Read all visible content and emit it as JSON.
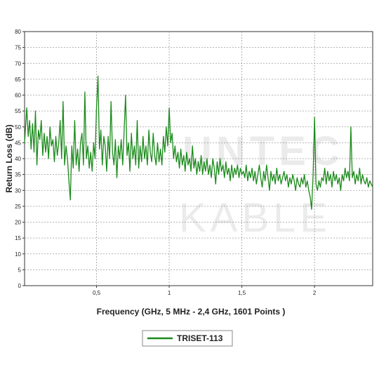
{
  "chart_data": {
    "type": "line",
    "xlabel": "Frequency (GHz, 5 MHz - 2,4 GHz, 1601 Points )",
    "ylabel": "Return Loss (dB)",
    "xlim": [
      0.005,
      2.4
    ],
    "ylim": [
      0,
      80
    ],
    "x_ticks": [
      {
        "value": 0.5,
        "label": "0,5"
      },
      {
        "value": 1,
        "label": "1"
      },
      {
        "value": 1.5,
        "label": "1,5"
      },
      {
        "value": 2,
        "label": "2"
      }
    ],
    "y_ticks": [
      0,
      5,
      10,
      15,
      20,
      25,
      30,
      35,
      40,
      45,
      50,
      55,
      60,
      65,
      70,
      75,
      80
    ],
    "grid": true,
    "legend_position": "bottom-center",
    "series": [
      {
        "name": "TRISET-113",
        "color": "#1a8a1a",
        "points": [
          [
            0.005,
            45
          ],
          [
            0.02,
            56
          ],
          [
            0.03,
            47
          ],
          [
            0.04,
            52
          ],
          [
            0.05,
            43
          ],
          [
            0.06,
            51
          ],
          [
            0.07,
            42
          ],
          [
            0.08,
            55
          ],
          [
            0.09,
            38
          ],
          [
            0.1,
            49
          ],
          [
            0.11,
            46
          ],
          [
            0.12,
            52
          ],
          [
            0.13,
            41
          ],
          [
            0.14,
            48
          ],
          [
            0.15,
            42
          ],
          [
            0.16,
            47
          ],
          [
            0.17,
            40
          ],
          [
            0.18,
            50
          ],
          [
            0.19,
            44
          ],
          [
            0.2,
            46
          ],
          [
            0.21,
            39
          ],
          [
            0.22,
            47
          ],
          [
            0.23,
            41
          ],
          [
            0.24,
            45
          ],
          [
            0.25,
            52
          ],
          [
            0.26,
            40
          ],
          [
            0.27,
            58
          ],
          [
            0.28,
            38
          ],
          [
            0.29,
            44
          ],
          [
            0.3,
            40
          ],
          [
            0.31,
            33
          ],
          [
            0.32,
            27
          ],
          [
            0.33,
            44
          ],
          [
            0.34,
            37
          ],
          [
            0.35,
            52
          ],
          [
            0.36,
            38
          ],
          [
            0.37,
            43
          ],
          [
            0.38,
            36
          ],
          [
            0.39,
            45
          ],
          [
            0.4,
            48
          ],
          [
            0.41,
            38
          ],
          [
            0.42,
            61
          ],
          [
            0.43,
            40
          ],
          [
            0.44,
            44
          ],
          [
            0.45,
            37
          ],
          [
            0.46,
            42
          ],
          [
            0.47,
            36
          ],
          [
            0.48,
            45
          ],
          [
            0.49,
            40
          ],
          [
            0.5,
            56
          ],
          [
            0.51,
            66
          ],
          [
            0.52,
            43
          ],
          [
            0.53,
            49
          ],
          [
            0.54,
            38
          ],
          [
            0.55,
            47
          ],
          [
            0.56,
            44
          ],
          [
            0.57,
            36
          ],
          [
            0.58,
            47
          ],
          [
            0.59,
            40
          ],
          [
            0.6,
            58
          ],
          [
            0.61,
            42
          ],
          [
            0.62,
            38
          ],
          [
            0.63,
            46
          ],
          [
            0.64,
            34
          ],
          [
            0.65,
            44
          ],
          [
            0.66,
            40
          ],
          [
            0.67,
            46
          ],
          [
            0.68,
            38
          ],
          [
            0.69,
            49
          ],
          [
            0.7,
            60
          ],
          [
            0.71,
            41
          ],
          [
            0.72,
            45
          ],
          [
            0.73,
            36
          ],
          [
            0.74,
            48
          ],
          [
            0.75,
            40
          ],
          [
            0.76,
            44
          ],
          [
            0.77,
            38
          ],
          [
            0.78,
            52
          ],
          [
            0.79,
            37
          ],
          [
            0.8,
            44
          ],
          [
            0.81,
            39
          ],
          [
            0.82,
            47
          ],
          [
            0.83,
            40
          ],
          [
            0.84,
            44
          ],
          [
            0.85,
            38
          ],
          [
            0.86,
            49
          ],
          [
            0.87,
            42
          ],
          [
            0.88,
            39
          ],
          [
            0.89,
            48
          ],
          [
            0.9,
            41
          ],
          [
            0.91,
            38
          ],
          [
            0.92,
            45
          ],
          [
            0.93,
            39
          ],
          [
            0.94,
            43
          ],
          [
            0.95,
            38
          ],
          [
            0.96,
            47
          ],
          [
            0.97,
            42
          ],
          [
            0.98,
            50
          ],
          [
            0.99,
            44
          ],
          [
            1.0,
            56
          ],
          [
            1.01,
            45
          ],
          [
            1.02,
            48
          ],
          [
            1.03,
            40
          ],
          [
            1.04,
            44
          ],
          [
            1.05,
            39
          ],
          [
            1.06,
            42
          ],
          [
            1.07,
            37
          ],
          [
            1.08,
            43
          ],
          [
            1.09,
            38
          ],
          [
            1.1,
            41
          ],
          [
            1.11,
            36
          ],
          [
            1.12,
            42
          ],
          [
            1.13,
            38
          ],
          [
            1.14,
            40
          ],
          [
            1.15,
            36
          ],
          [
            1.16,
            44
          ],
          [
            1.17,
            37
          ],
          [
            1.18,
            40
          ],
          [
            1.19,
            35
          ],
          [
            1.2,
            39
          ],
          [
            1.21,
            36
          ],
          [
            1.22,
            41
          ],
          [
            1.23,
            35
          ],
          [
            1.24,
            39
          ],
          [
            1.25,
            36
          ],
          [
            1.26,
            40
          ],
          [
            1.27,
            35
          ],
          [
            1.28,
            38
          ],
          [
            1.29,
            34
          ],
          [
            1.3,
            40
          ],
          [
            1.31,
            37
          ],
          [
            1.32,
            32
          ],
          [
            1.33,
            39
          ],
          [
            1.34,
            35
          ],
          [
            1.35,
            40
          ],
          [
            1.36,
            36
          ],
          [
            1.37,
            38
          ],
          [
            1.38,
            34
          ],
          [
            1.39,
            39
          ],
          [
            1.4,
            35
          ],
          [
            1.41,
            37
          ],
          [
            1.42,
            33
          ],
          [
            1.43,
            38
          ],
          [
            1.44,
            34
          ],
          [
            1.45,
            37
          ],
          [
            1.46,
            35
          ],
          [
            1.47,
            38
          ],
          [
            1.48,
            34
          ],
          [
            1.49,
            37
          ],
          [
            1.5,
            35
          ],
          [
            1.51,
            36
          ],
          [
            1.52,
            34
          ],
          [
            1.53,
            38
          ],
          [
            1.54,
            33
          ],
          [
            1.55,
            36
          ],
          [
            1.56,
            34
          ],
          [
            1.57,
            37
          ],
          [
            1.58,
            33
          ],
          [
            1.59,
            36
          ],
          [
            1.6,
            32
          ],
          [
            1.61,
            35
          ],
          [
            1.62,
            38
          ],
          [
            1.63,
            34
          ],
          [
            1.64,
            31
          ],
          [
            1.65,
            36
          ],
          [
            1.66,
            33
          ],
          [
            1.67,
            38
          ],
          [
            1.68,
            34
          ],
          [
            1.69,
            30
          ],
          [
            1.7,
            36
          ],
          [
            1.71,
            33
          ],
          [
            1.72,
            35
          ],
          [
            1.73,
            32
          ],
          [
            1.74,
            37
          ],
          [
            1.75,
            33
          ],
          [
            1.76,
            35
          ],
          [
            1.77,
            32
          ],
          [
            1.78,
            34
          ],
          [
            1.79,
            36
          ],
          [
            1.8,
            33
          ],
          [
            1.81,
            35
          ],
          [
            1.82,
            31
          ],
          [
            1.83,
            34
          ],
          [
            1.84,
            32
          ],
          [
            1.85,
            35
          ],
          [
            1.86,
            33
          ],
          [
            1.87,
            30
          ],
          [
            1.88,
            34
          ],
          [
            1.89,
            32
          ],
          [
            1.9,
            31
          ],
          [
            1.91,
            34
          ],
          [
            1.92,
            32
          ],
          [
            1.93,
            35
          ],
          [
            1.94,
            31
          ],
          [
            1.95,
            33
          ],
          [
            1.96,
            30
          ],
          [
            1.97,
            28
          ],
          [
            1.98,
            24
          ],
          [
            1.99,
            35
          ],
          [
            2.0,
            53
          ],
          [
            2.01,
            32
          ],
          [
            2.02,
            30
          ],
          [
            2.03,
            33
          ],
          [
            2.04,
            31
          ],
          [
            2.05,
            34
          ],
          [
            2.06,
            33
          ],
          [
            2.07,
            37
          ],
          [
            2.08,
            32
          ],
          [
            2.09,
            36
          ],
          [
            2.1,
            33
          ],
          [
            2.11,
            35
          ],
          [
            2.12,
            31
          ],
          [
            2.13,
            36
          ],
          [
            2.14,
            33
          ],
          [
            2.15,
            35
          ],
          [
            2.16,
            32
          ],
          [
            2.17,
            34
          ],
          [
            2.18,
            30
          ],
          [
            2.19,
            35
          ],
          [
            2.2,
            33
          ],
          [
            2.21,
            37
          ],
          [
            2.22,
            34
          ],
          [
            2.23,
            36
          ],
          [
            2.24,
            33
          ],
          [
            2.25,
            50
          ],
          [
            2.26,
            34
          ],
          [
            2.27,
            36
          ],
          [
            2.28,
            32
          ],
          [
            2.29,
            35
          ],
          [
            2.3,
            33
          ],
          [
            2.31,
            37
          ],
          [
            2.32,
            32
          ],
          [
            2.33,
            35
          ],
          [
            2.34,
            33
          ],
          [
            2.35,
            32
          ],
          [
            2.36,
            34
          ],
          [
            2.37,
            31
          ],
          [
            2.38,
            33
          ],
          [
            2.39,
            32
          ],
          [
            2.4,
            31
          ]
        ]
      }
    ]
  }
}
